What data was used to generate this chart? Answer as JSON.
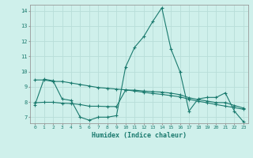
{
  "xlabel": "Humidex (Indice chaleur)",
  "bg_color": "#cff0eb",
  "line_color": "#1a7a6e",
  "grid_color": "#b8ddd8",
  "xlim": [
    -0.5,
    23.5
  ],
  "ylim": [
    6.6,
    14.4
  ],
  "yticks": [
    7,
    8,
    9,
    10,
    11,
    12,
    13,
    14
  ],
  "xticks": [
    0,
    1,
    2,
    3,
    4,
    5,
    6,
    7,
    8,
    9,
    10,
    11,
    12,
    13,
    14,
    15,
    16,
    17,
    18,
    19,
    20,
    21,
    22,
    23
  ],
  "line1_x": [
    0,
    1,
    2,
    3,
    4,
    5,
    6,
    7,
    8,
    9,
    10,
    11,
    12,
    13,
    14,
    15,
    16,
    17,
    18,
    19,
    20,
    21,
    22,
    23
  ],
  "line1_y": [
    7.8,
    9.5,
    9.4,
    8.2,
    8.1,
    7.0,
    6.8,
    7.0,
    7.0,
    7.1,
    10.3,
    11.6,
    12.3,
    13.3,
    14.2,
    11.5,
    10.0,
    7.4,
    8.2,
    8.3,
    8.3,
    8.6,
    7.4,
    6.7
  ],
  "line2_x": [
    0,
    1,
    2,
    3,
    4,
    5,
    6,
    7,
    8,
    9,
    10,
    11,
    12,
    13,
    14,
    15,
    16,
    17,
    18,
    19,
    20,
    21,
    22,
    23
  ],
  "line2_y": [
    9.45,
    9.45,
    9.35,
    9.35,
    9.25,
    9.15,
    9.05,
    8.95,
    8.9,
    8.85,
    8.8,
    8.72,
    8.64,
    8.56,
    8.5,
    8.42,
    8.34,
    8.18,
    8.05,
    7.95,
    7.83,
    7.73,
    7.63,
    7.52
  ],
  "line3_x": [
    0,
    1,
    2,
    3,
    4,
    5,
    6,
    7,
    8,
    9,
    10,
    11,
    12,
    13,
    14,
    15,
    16,
    17,
    18,
    19,
    20,
    21,
    22,
    23
  ],
  "line3_y": [
    7.95,
    7.98,
    7.98,
    7.92,
    7.9,
    7.83,
    7.72,
    7.72,
    7.7,
    7.7,
    8.78,
    8.78,
    8.72,
    8.68,
    8.65,
    8.58,
    8.48,
    8.28,
    8.16,
    8.06,
    7.96,
    7.96,
    7.77,
    7.6
  ]
}
